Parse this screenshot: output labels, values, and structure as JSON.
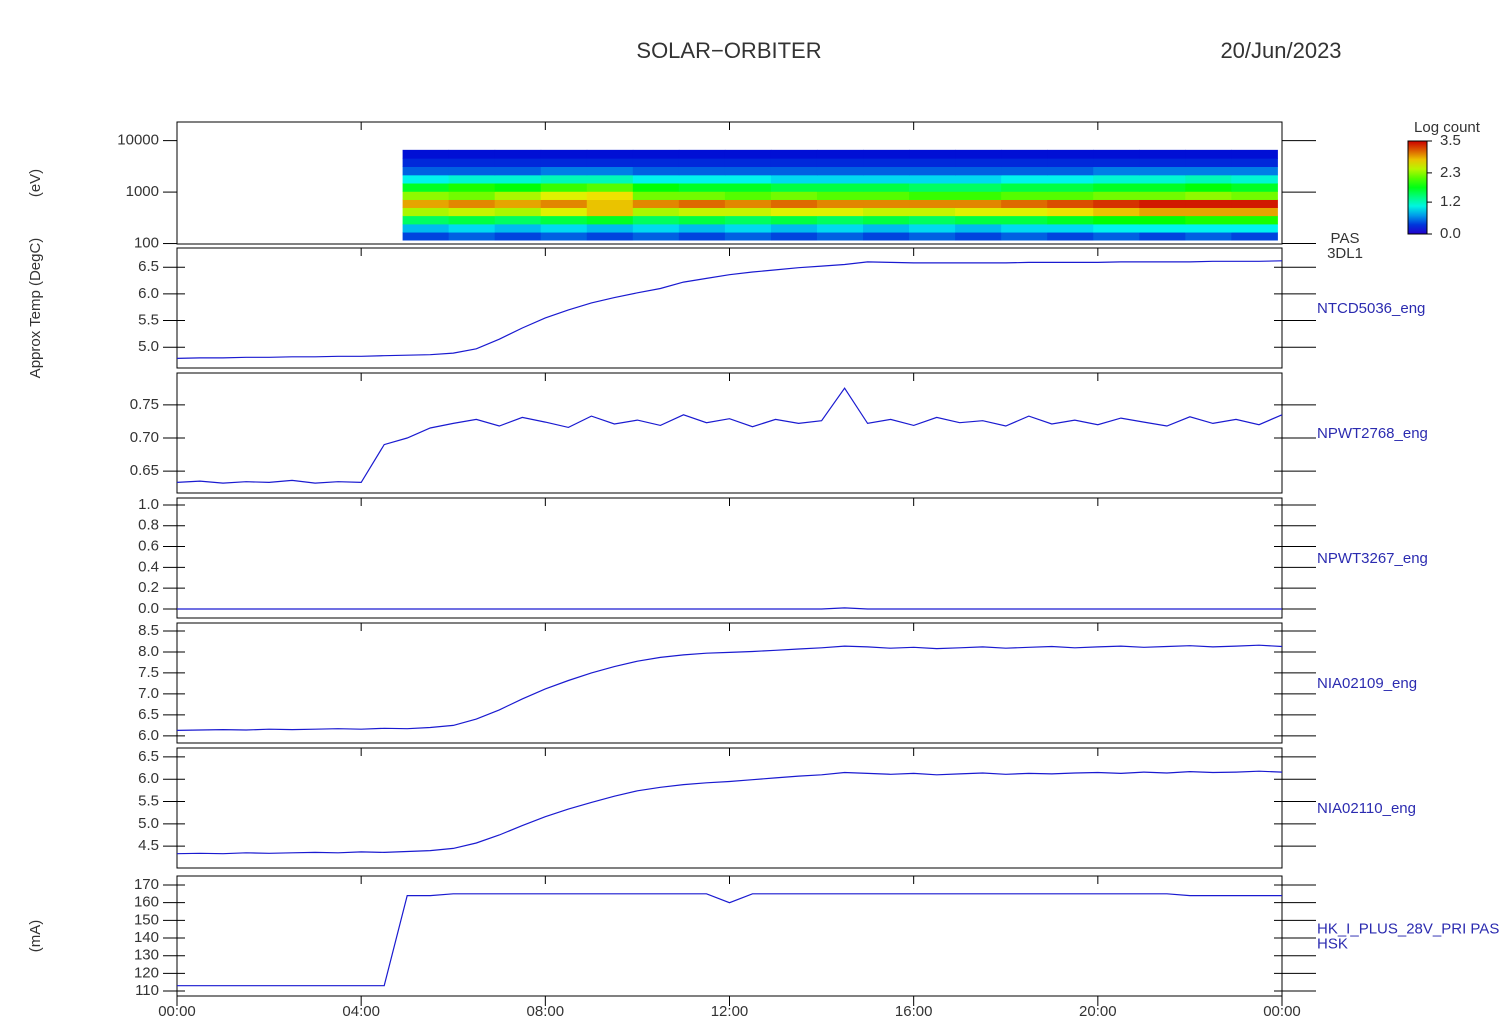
{
  "title": "SOLAR−ORBITER",
  "date": "20/Jun/2023",
  "x_axis": {
    "xlim": [
      0,
      24
    ],
    "xticks": [
      {
        "value": 0,
        "label": "00:00"
      },
      {
        "value": 4,
        "label": "04:00"
      },
      {
        "value": 8,
        "label": "08:00"
      },
      {
        "value": 12,
        "label": "12:00"
      },
      {
        "value": 16,
        "label": "16:00"
      },
      {
        "value": 20,
        "label": "20:00"
      },
      {
        "value": 24,
        "label": "00:00"
      }
    ],
    "x": [
      0,
      0.5,
      1,
      1.5,
      2,
      2.5,
      3,
      3.5,
      4,
      4.5,
      5,
      5.5,
      6,
      6.5,
      7,
      7.5,
      8,
      8.5,
      9,
      9.5,
      10,
      10.5,
      11,
      11.5,
      12,
      12.5,
      13,
      13.5,
      14,
      14.5,
      15,
      15.5,
      16,
      16.5,
      17,
      17.5,
      18,
      18.5,
      19,
      19.5,
      20,
      20.5,
      21,
      21.5,
      22,
      22.5,
      23,
      23.5,
      24
    ]
  },
  "chart_data": [
    {
      "type": "heatmap",
      "ylabel": "(eV)",
      "right_label": [
        "PAS",
        "3DL1"
      ],
      "log_y": true,
      "ylim": [
        98,
        23000
      ],
      "yticks": [
        100,
        1000,
        10000
      ],
      "x": [
        5.4,
        6.4,
        7.4,
        8.4,
        9.4,
        10.4,
        11.4,
        12.4,
        13.4,
        14.4,
        15.4,
        16.4,
        17.4,
        18.4,
        19.4,
        20.4,
        21.4,
        22.4,
        23.4
      ],
      "y": [
        140,
        200,
        290,
        420,
        600,
        860,
        1250,
        1800,
        2600,
        3800,
        5500
      ],
      "z": [
        [
          0.4,
          0.5,
          0.4,
          0.5,
          0.4,
          0.5,
          0.4,
          0.5,
          0.4,
          0.5,
          0.4,
          0.5,
          0.4,
          0.5,
          0.4,
          0.5,
          0.4,
          0.5,
          0.4
        ],
        [
          0.8,
          0.9,
          0.8,
          0.9,
          0.8,
          0.9,
          0.8,
          0.9,
          0.8,
          0.9,
          0.8,
          0.9,
          0.8,
          0.9,
          0.9,
          1.0,
          1.0,
          1.0,
          1.0
        ],
        [
          1.5,
          1.6,
          1.5,
          1.6,
          1.7,
          1.5,
          1.6,
          1.5,
          1.6,
          1.5,
          1.6,
          1.5,
          1.6,
          1.6,
          1.7,
          1.8,
          1.8,
          1.9,
          1.9
        ],
        [
          2.4,
          2.5,
          2.4,
          2.6,
          2.8,
          2.4,
          2.5,
          2.5,
          2.6,
          2.6,
          2.5,
          2.5,
          2.6,
          2.6,
          2.7,
          2.8,
          2.9,
          2.9,
          2.9
        ],
        [
          2.9,
          3.0,
          2.9,
          3.0,
          2.8,
          3.0,
          3.1,
          3.0,
          3.1,
          3.0,
          3.0,
          3.0,
          3.0,
          3.1,
          3.2,
          3.3,
          3.4,
          3.4,
          3.4
        ],
        [
          2.3,
          2.2,
          2.4,
          2.6,
          2.7,
          2.2,
          2.2,
          2.1,
          2.2,
          2.1,
          2.1,
          2.0,
          2.0,
          2.1,
          2.1,
          2.2,
          2.2,
          2.3,
          2.2
        ],
        [
          1.7,
          1.9,
          1.8,
          2.0,
          2.1,
          1.8,
          1.7,
          1.7,
          1.6,
          1.6,
          1.6,
          1.5,
          1.5,
          1.6,
          1.6,
          1.7,
          1.7,
          1.8,
          1.7
        ],
        [
          1.0,
          1.1,
          1.1,
          1.2,
          1.2,
          1.0,
          1.0,
          1.0,
          0.9,
          0.9,
          0.9,
          0.9,
          0.9,
          1.0,
          1.0,
          1.1,
          1.1,
          1.2,
          1.1
        ],
        [
          0.5,
          0.5,
          0.5,
          0.6,
          0.6,
          0.5,
          0.5,
          0.5,
          0.5,
          0.5,
          0.5,
          0.5,
          0.5,
          0.5,
          0.5,
          0.6,
          0.6,
          0.6,
          0.6
        ],
        [
          0.3,
          0.3,
          0.3,
          0.3,
          0.3,
          0.3,
          0.3,
          0.3,
          0.3,
          0.3,
          0.3,
          0.3,
          0.3,
          0.3,
          0.3,
          0.3,
          0.3,
          0.3,
          0.3
        ],
        [
          0.2,
          0.2,
          0.2,
          0.2,
          0.2,
          0.2,
          0.2,
          0.2,
          0.2,
          0.2,
          0.2,
          0.2,
          0.2,
          0.2,
          0.2,
          0.2,
          0.2,
          0.2,
          0.2
        ]
      ],
      "colorbar": {
        "label": "Log count",
        "clim": [
          0,
          3.5
        ],
        "ticks": [
          3.5,
          2.3,
          1.2,
          {
            "value": 0,
            "label": "0.0"
          }
        ]
      }
    },
    {
      "type": "line",
      "ylabel": "Approx Temp (DegC)",
      "right_label": [
        "NTCD5036_eng"
      ],
      "color": "#1a1ad0",
      "ylim": [
        4.61,
        6.86
      ],
      "yticks": [
        {
          "value": 5,
          "label": "5.0"
        },
        5.5,
        {
          "value": 6,
          "label": "6.0"
        },
        6.5
      ],
      "values": [
        4.79,
        4.8,
        4.8,
        4.81,
        4.81,
        4.82,
        4.82,
        4.83,
        4.83,
        4.84,
        4.85,
        4.86,
        4.89,
        4.97,
        5.15,
        5.36,
        5.55,
        5.7,
        5.83,
        5.93,
        6.02,
        6.1,
        6.22,
        6.29,
        6.36,
        6.41,
        6.45,
        6.49,
        6.52,
        6.55,
        6.6,
        6.59,
        6.58,
        6.58,
        6.58,
        6.58,
        6.58,
        6.59,
        6.59,
        6.59,
        6.59,
        6.6,
        6.6,
        6.6,
        6.6,
        6.61,
        6.61,
        6.61,
        6.62
      ]
    },
    {
      "type": "line",
      "right_label": [
        "NPWT2768_eng"
      ],
      "color": "#1a1ad0",
      "ylim": [
        0.617,
        0.798
      ],
      "yticks": [
        0.65,
        {
          "value": 0.7,
          "label": "0.70"
        },
        0.75
      ],
      "values": [
        0.633,
        0.635,
        0.632,
        0.634,
        0.633,
        0.636,
        0.632,
        0.634,
        0.633,
        0.69,
        0.7,
        0.715,
        0.722,
        0.728,
        0.718,
        0.731,
        0.724,
        0.716,
        0.733,
        0.721,
        0.727,
        0.719,
        0.735,
        0.723,
        0.729,
        0.717,
        0.728,
        0.722,
        0.726,
        0.775,
        0.722,
        0.728,
        0.719,
        0.731,
        0.723,
        0.726,
        0.718,
        0.733,
        0.721,
        0.727,
        0.72,
        0.73,
        0.724,
        0.718,
        0.732,
        0.722,
        0.728,
        0.72,
        0.735
      ]
    },
    {
      "type": "line",
      "right_label": [
        "NPWT3267_eng"
      ],
      "color": "#1a1ad0",
      "ylim": [
        -0.087,
        1.067
      ],
      "yticks": [
        {
          "value": 0,
          "label": "0.0"
        },
        0.2,
        0.4,
        0.6,
        0.8,
        {
          "value": 1,
          "label": "1.0"
        }
      ],
      "values": [
        0,
        0,
        0,
        0,
        0,
        0,
        0,
        0,
        0,
        0,
        0,
        0,
        0,
        0,
        0,
        0,
        0,
        0,
        0,
        0,
        0,
        0,
        0,
        0,
        0,
        0,
        0,
        0,
        0,
        0.01,
        0,
        0,
        0,
        0,
        0,
        0,
        0,
        0,
        0,
        0,
        0,
        0,
        0,
        0,
        0,
        0,
        0,
        0,
        0
      ]
    },
    {
      "type": "line",
      "right_label": [
        "NIA02109_eng"
      ],
      "color": "#1a1ad0",
      "ylim": [
        5.83,
        8.69
      ],
      "yticks": [
        {
          "value": 6,
          "label": "6.0"
        },
        6.5,
        {
          "value": 7,
          "label": "7.0"
        },
        7.5,
        {
          "value": 8,
          "label": "8.0"
        },
        8.5
      ],
      "values": [
        6.13,
        6.14,
        6.15,
        6.14,
        6.16,
        6.15,
        6.16,
        6.17,
        6.16,
        6.18,
        6.17,
        6.2,
        6.25,
        6.4,
        6.62,
        6.88,
        7.12,
        7.32,
        7.5,
        7.65,
        7.78,
        7.87,
        7.93,
        7.97,
        7.99,
        8.01,
        8.04,
        8.07,
        8.1,
        8.14,
        8.12,
        8.09,
        8.11,
        8.08,
        8.1,
        8.12,
        8.09,
        8.11,
        8.13,
        8.1,
        8.12,
        8.14,
        8.11,
        8.13,
        8.15,
        8.12,
        8.14,
        8.16,
        8.13
      ]
    },
    {
      "type": "line",
      "right_label": [
        "NIA02110_eng"
      ],
      "color": "#1a1ad0",
      "ylim": [
        4.01,
        6.7
      ],
      "yticks": [
        4.5,
        {
          "value": 5,
          "label": "5.0"
        },
        5.5,
        {
          "value": 6,
          "label": "6.0"
        },
        6.5
      ],
      "values": [
        4.33,
        4.34,
        4.33,
        4.35,
        4.34,
        4.35,
        4.36,
        4.35,
        4.37,
        4.36,
        4.38,
        4.4,
        4.45,
        4.57,
        4.75,
        4.96,
        5.16,
        5.33,
        5.48,
        5.62,
        5.74,
        5.82,
        5.88,
        5.92,
        5.95,
        5.99,
        6.03,
        6.07,
        6.1,
        6.15,
        6.13,
        6.11,
        6.13,
        6.1,
        6.12,
        6.14,
        6.11,
        6.13,
        6.12,
        6.14,
        6.15,
        6.13,
        6.16,
        6.14,
        6.17,
        6.15,
        6.16,
        6.18,
        6.16
      ]
    },
    {
      "type": "line",
      "ylabel": "(mA)",
      "right_label": [
        "HK_I_PLUS_28V_PRI PAS",
        "HSK"
      ],
      "color": "#1a1ad0",
      "ylim": [
        107.2,
        175.1
      ],
      "yticks": [
        110,
        120,
        130,
        140,
        150,
        160,
        170
      ],
      "values": [
        113,
        113,
        113,
        113,
        113,
        113,
        113,
        113,
        113,
        113,
        164,
        164,
        165,
        165,
        165,
        165,
        165,
        165,
        165,
        165,
        165,
        165,
        165,
        165,
        160,
        165,
        165,
        165,
        165,
        165,
        165,
        165,
        165,
        165,
        165,
        165,
        165,
        165,
        165,
        165,
        165,
        165,
        165,
        165,
        164,
        164,
        164,
        164,
        164
      ]
    }
  ]
}
